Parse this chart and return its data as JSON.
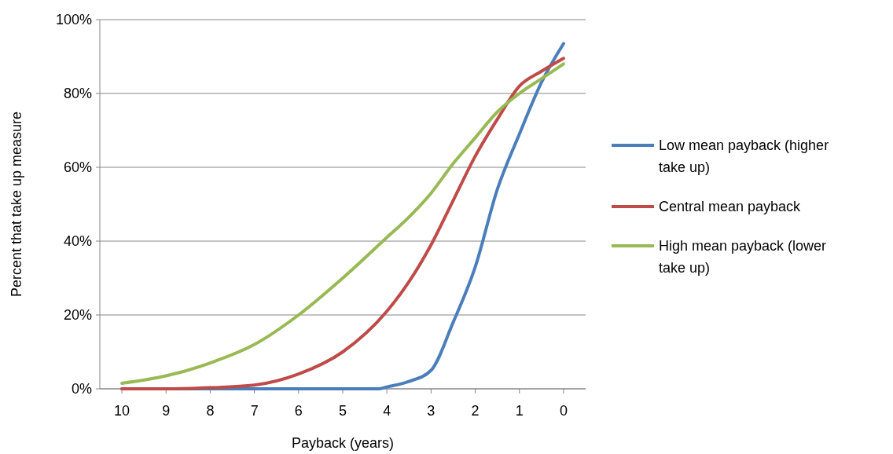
{
  "chart_data": {
    "type": "line",
    "xlabel": "Payback (years)",
    "ylabel": "Percent that take up measure",
    "xlim": [
      10.5,
      -0.5
    ],
    "xticks": [
      10,
      9,
      8,
      7,
      6,
      5,
      4,
      3,
      2,
      1,
      0
    ],
    "ylim": [
      0,
      1
    ],
    "yticks": [
      {
        "value": 0,
        "label": "0%"
      },
      {
        "value": 0.2,
        "label": "20%"
      },
      {
        "value": 0.4,
        "label": "40%"
      },
      {
        "value": 0.6,
        "label": "60%"
      },
      {
        "value": 0.8,
        "label": "80%"
      },
      {
        "value": 1,
        "label": "100%"
      }
    ],
    "grid": "y",
    "legend": "right",
    "marker": "none",
    "line_style": "solid",
    "series": [
      {
        "name": "Low mean payback (higher take up)",
        "color": "#4a7ebb",
        "x": [
          10,
          9,
          8,
          7,
          6,
          5,
          4.5,
          4.2,
          4,
          3.5,
          3,
          2.5,
          2,
          1.5,
          1,
          0.5,
          0
        ],
        "values": [
          0,
          0,
          0,
          0,
          0,
          0,
          0,
          0,
          0.005,
          0.02,
          0.05,
          0.18,
          0.33,
          0.54,
          0.69,
          0.83,
          0.935
        ]
      },
      {
        "name": "Central mean payback",
        "color": "#be4b48",
        "x": [
          10,
          9,
          8,
          7,
          6,
          5,
          4,
          3.5,
          3,
          2.5,
          2,
          1.5,
          1,
          0.5,
          0
        ],
        "values": [
          0,
          0,
          0.003,
          0.01,
          0.04,
          0.1,
          0.21,
          0.29,
          0.39,
          0.51,
          0.63,
          0.73,
          0.82,
          0.86,
          0.895
        ]
      },
      {
        "name": "High mean payback (lower take up)",
        "color": "#98b954",
        "x": [
          10,
          9,
          8,
          7,
          6,
          5,
          4,
          3.5,
          3,
          2.5,
          2,
          1.5,
          1,
          0.5,
          0
        ],
        "values": [
          0.015,
          0.035,
          0.07,
          0.12,
          0.2,
          0.3,
          0.41,
          0.465,
          0.53,
          0.61,
          0.68,
          0.75,
          0.8,
          0.84,
          0.88
        ]
      }
    ]
  }
}
